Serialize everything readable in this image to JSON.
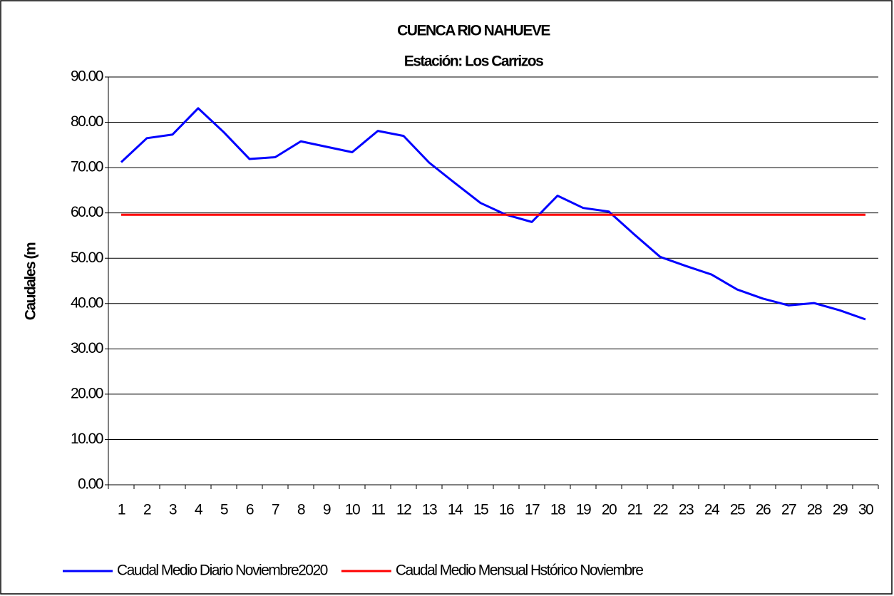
{
  "chart_data": {
    "type": "line",
    "title": "CUENCA RIO NAHUEVE",
    "subtitle": "Estación: Los Carrizos",
    "y_label": "Caudales (m",
    "categories": [
      "1",
      "2",
      "3",
      "4",
      "5",
      "6",
      "7",
      "8",
      "9",
      "10",
      "11",
      "12",
      "13",
      "14",
      "15",
      "16",
      "17",
      "18",
      "19",
      "20",
      "21",
      "22",
      "23",
      "24",
      "25",
      "26",
      "27",
      "28",
      "29",
      "30"
    ],
    "series": [
      {
        "name": "Caudal Medio Diario Noviembre2020",
        "color": "#0000ff",
        "values": [
          71.2,
          76.5,
          77.3,
          83.1,
          77.8,
          71.9,
          72.3,
          75.8,
          74.6,
          73.4,
          78.1,
          77.0,
          71.1,
          66.6,
          62.2,
          59.6,
          58.0,
          63.8,
          61.1,
          60.3,
          55.2,
          50.3,
          48.3,
          46.4,
          43.1,
          41.1,
          39.6,
          40.1,
          38.5,
          36.5
        ]
      },
      {
        "name": "Caudal Medio Mensual Hstórico Noviembre",
        "color": "#ff0000",
        "values": [
          59.6,
          59.6,
          59.6,
          59.6,
          59.6,
          59.6,
          59.6,
          59.6,
          59.6,
          59.6,
          59.6,
          59.6,
          59.6,
          59.6,
          59.6,
          59.6,
          59.6,
          59.6,
          59.6,
          59.6,
          59.6,
          59.6,
          59.6,
          59.6,
          59.6,
          59.6,
          59.6,
          59.6,
          59.6,
          59.6
        ]
      }
    ],
    "ylim": [
      0,
      90
    ],
    "yticks": [
      {
        "value": 0,
        "label": "0.00"
      },
      {
        "value": 10,
        "label": "10.00"
      },
      {
        "value": 20,
        "label": "20.00"
      },
      {
        "value": 30,
        "label": "30.00"
      },
      {
        "value": 40,
        "label": "40.00"
      },
      {
        "value": 50,
        "label": "50.00"
      },
      {
        "value": 60,
        "label": "60.00"
      },
      {
        "value": 70,
        "label": "70.00"
      },
      {
        "value": 80,
        "label": "80.00"
      },
      {
        "value": 90,
        "label": "90.00"
      }
    ],
    "grid": true,
    "legend": "bottom"
  }
}
